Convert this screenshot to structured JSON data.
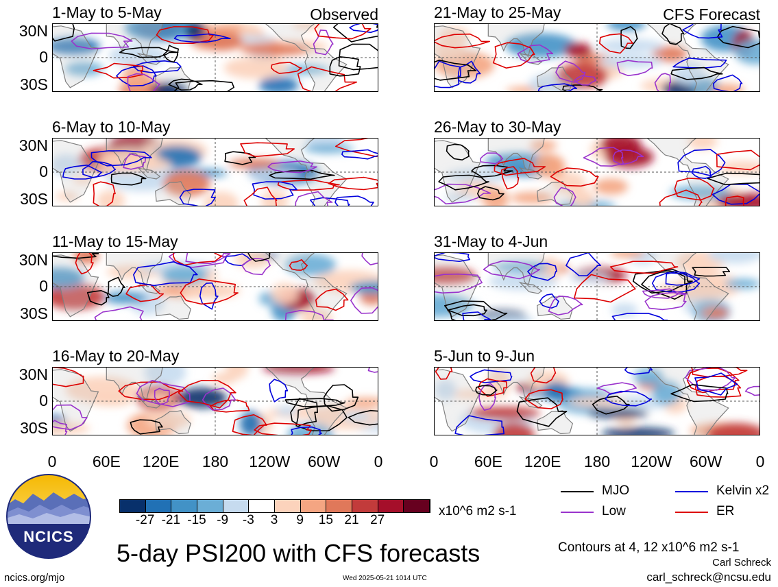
{
  "colors": {
    "mjo": "#000000",
    "low": "#9932cc",
    "kelvin": "#0000dd",
    "er": "#dd0000",
    "land": "#7f7f7f"
  },
  "panels": [
    {
      "title": "1-May to 5-May",
      "tag": "Observed",
      "column": "left",
      "row": 0
    },
    {
      "title": "6-May to 10-May",
      "tag": "",
      "column": "left",
      "row": 1
    },
    {
      "title": "11-May to 15-May",
      "tag": "",
      "column": "left",
      "row": 2
    },
    {
      "title": "16-May to 20-May",
      "tag": "",
      "column": "left",
      "row": 3
    },
    {
      "title": "21-May to 25-May",
      "tag": "CFS Forecast",
      "column": "right",
      "row": 0
    },
    {
      "title": "26-May to 30-May",
      "tag": "",
      "column": "right",
      "row": 1
    },
    {
      "title": "31-May to 4-Jun",
      "tag": "",
      "column": "right",
      "row": 2
    },
    {
      "title": "5-Jun to 9-Jun",
      "tag": "",
      "column": "right",
      "row": 3
    }
  ],
  "lat_labels": [
    "30N",
    "0",
    "30S"
  ],
  "lon_labels": [
    "0",
    "60E",
    "120E",
    "180",
    "120W",
    "60W",
    "0"
  ],
  "colorbar": {
    "colors": [
      "#08306b",
      "#2171b5",
      "#4292c6",
      "#6baed6",
      "#c6dbef",
      "#ffffff",
      "#fcd3bc",
      "#f4a582",
      "#e0785a",
      "#c23b3b",
      "#a50f2a",
      "#67001f"
    ],
    "tick_labels": [
      "-27",
      "-21",
      "-15",
      "-9",
      "-3",
      "3",
      "9",
      "15",
      "21",
      "27"
    ],
    "units": "x10^6 m2 s-1"
  },
  "legend": [
    {
      "label": "MJO",
      "color": "#000000"
    },
    {
      "label": "Kelvin x2",
      "color": "#0000dd"
    },
    {
      "label": "Low",
      "color": "#9932cc"
    },
    {
      "label": "ER",
      "color": "#dd0000"
    }
  ],
  "logo_text": "NCICS",
  "main_title": "5-day PSI200 with CFS forecasts",
  "contour_note": "Contours at 4, 12 x10^6 m2 s-1",
  "author": "Carl Schreck",
  "email": "carl_schreck@ncsu.edu",
  "url": "ncics.org/mjo",
  "timestamp": "Wed 2025-05-21 1014 UTC",
  "chart_data": [
    {
      "type": "heatmap",
      "title": "1-May to 5-May",
      "subtitle": "Observed",
      "xlim": [
        0,
        360
      ],
      "ylim": [
        -40,
        40
      ],
      "x_ticks": [
        "0",
        "60E",
        "120E",
        "180",
        "120W",
        "60W",
        "0"
      ],
      "y_ticks": [
        "30N",
        "0",
        "30S"
      ],
      "units": "x10^6 m2 s-1",
      "contour_levels": [
        4,
        12
      ]
    },
    {
      "type": "heatmap",
      "title": "6-May to 10-May",
      "xlim": [
        0,
        360
      ],
      "ylim": [
        -40,
        40
      ],
      "contour_levels": [
        4,
        12
      ]
    },
    {
      "type": "heatmap",
      "title": "11-May to 15-May",
      "xlim": [
        0,
        360
      ],
      "ylim": [
        -40,
        40
      ],
      "contour_levels": [
        4,
        12
      ]
    },
    {
      "type": "heatmap",
      "title": "16-May to 20-May",
      "xlim": [
        0,
        360
      ],
      "ylim": [
        -40,
        40
      ],
      "contour_levels": [
        4,
        12
      ]
    },
    {
      "type": "heatmap",
      "title": "21-May to 25-May",
      "subtitle": "CFS Forecast",
      "xlim": [
        0,
        360
      ],
      "ylim": [
        -40,
        40
      ],
      "contour_levels": [
        4,
        12
      ]
    },
    {
      "type": "heatmap",
      "title": "26-May to 30-May",
      "xlim": [
        0,
        360
      ],
      "ylim": [
        -40,
        40
      ],
      "contour_levels": [
        4,
        12
      ]
    },
    {
      "type": "heatmap",
      "title": "31-May to 4-Jun",
      "xlim": [
        0,
        360
      ],
      "ylim": [
        -40,
        40
      ],
      "contour_levels": [
        4,
        12
      ]
    },
    {
      "type": "heatmap",
      "title": "5-Jun to 9-Jun",
      "xlim": [
        0,
        360
      ],
      "ylim": [
        -40,
        40
      ],
      "contour_levels": [
        4,
        12
      ]
    }
  ]
}
